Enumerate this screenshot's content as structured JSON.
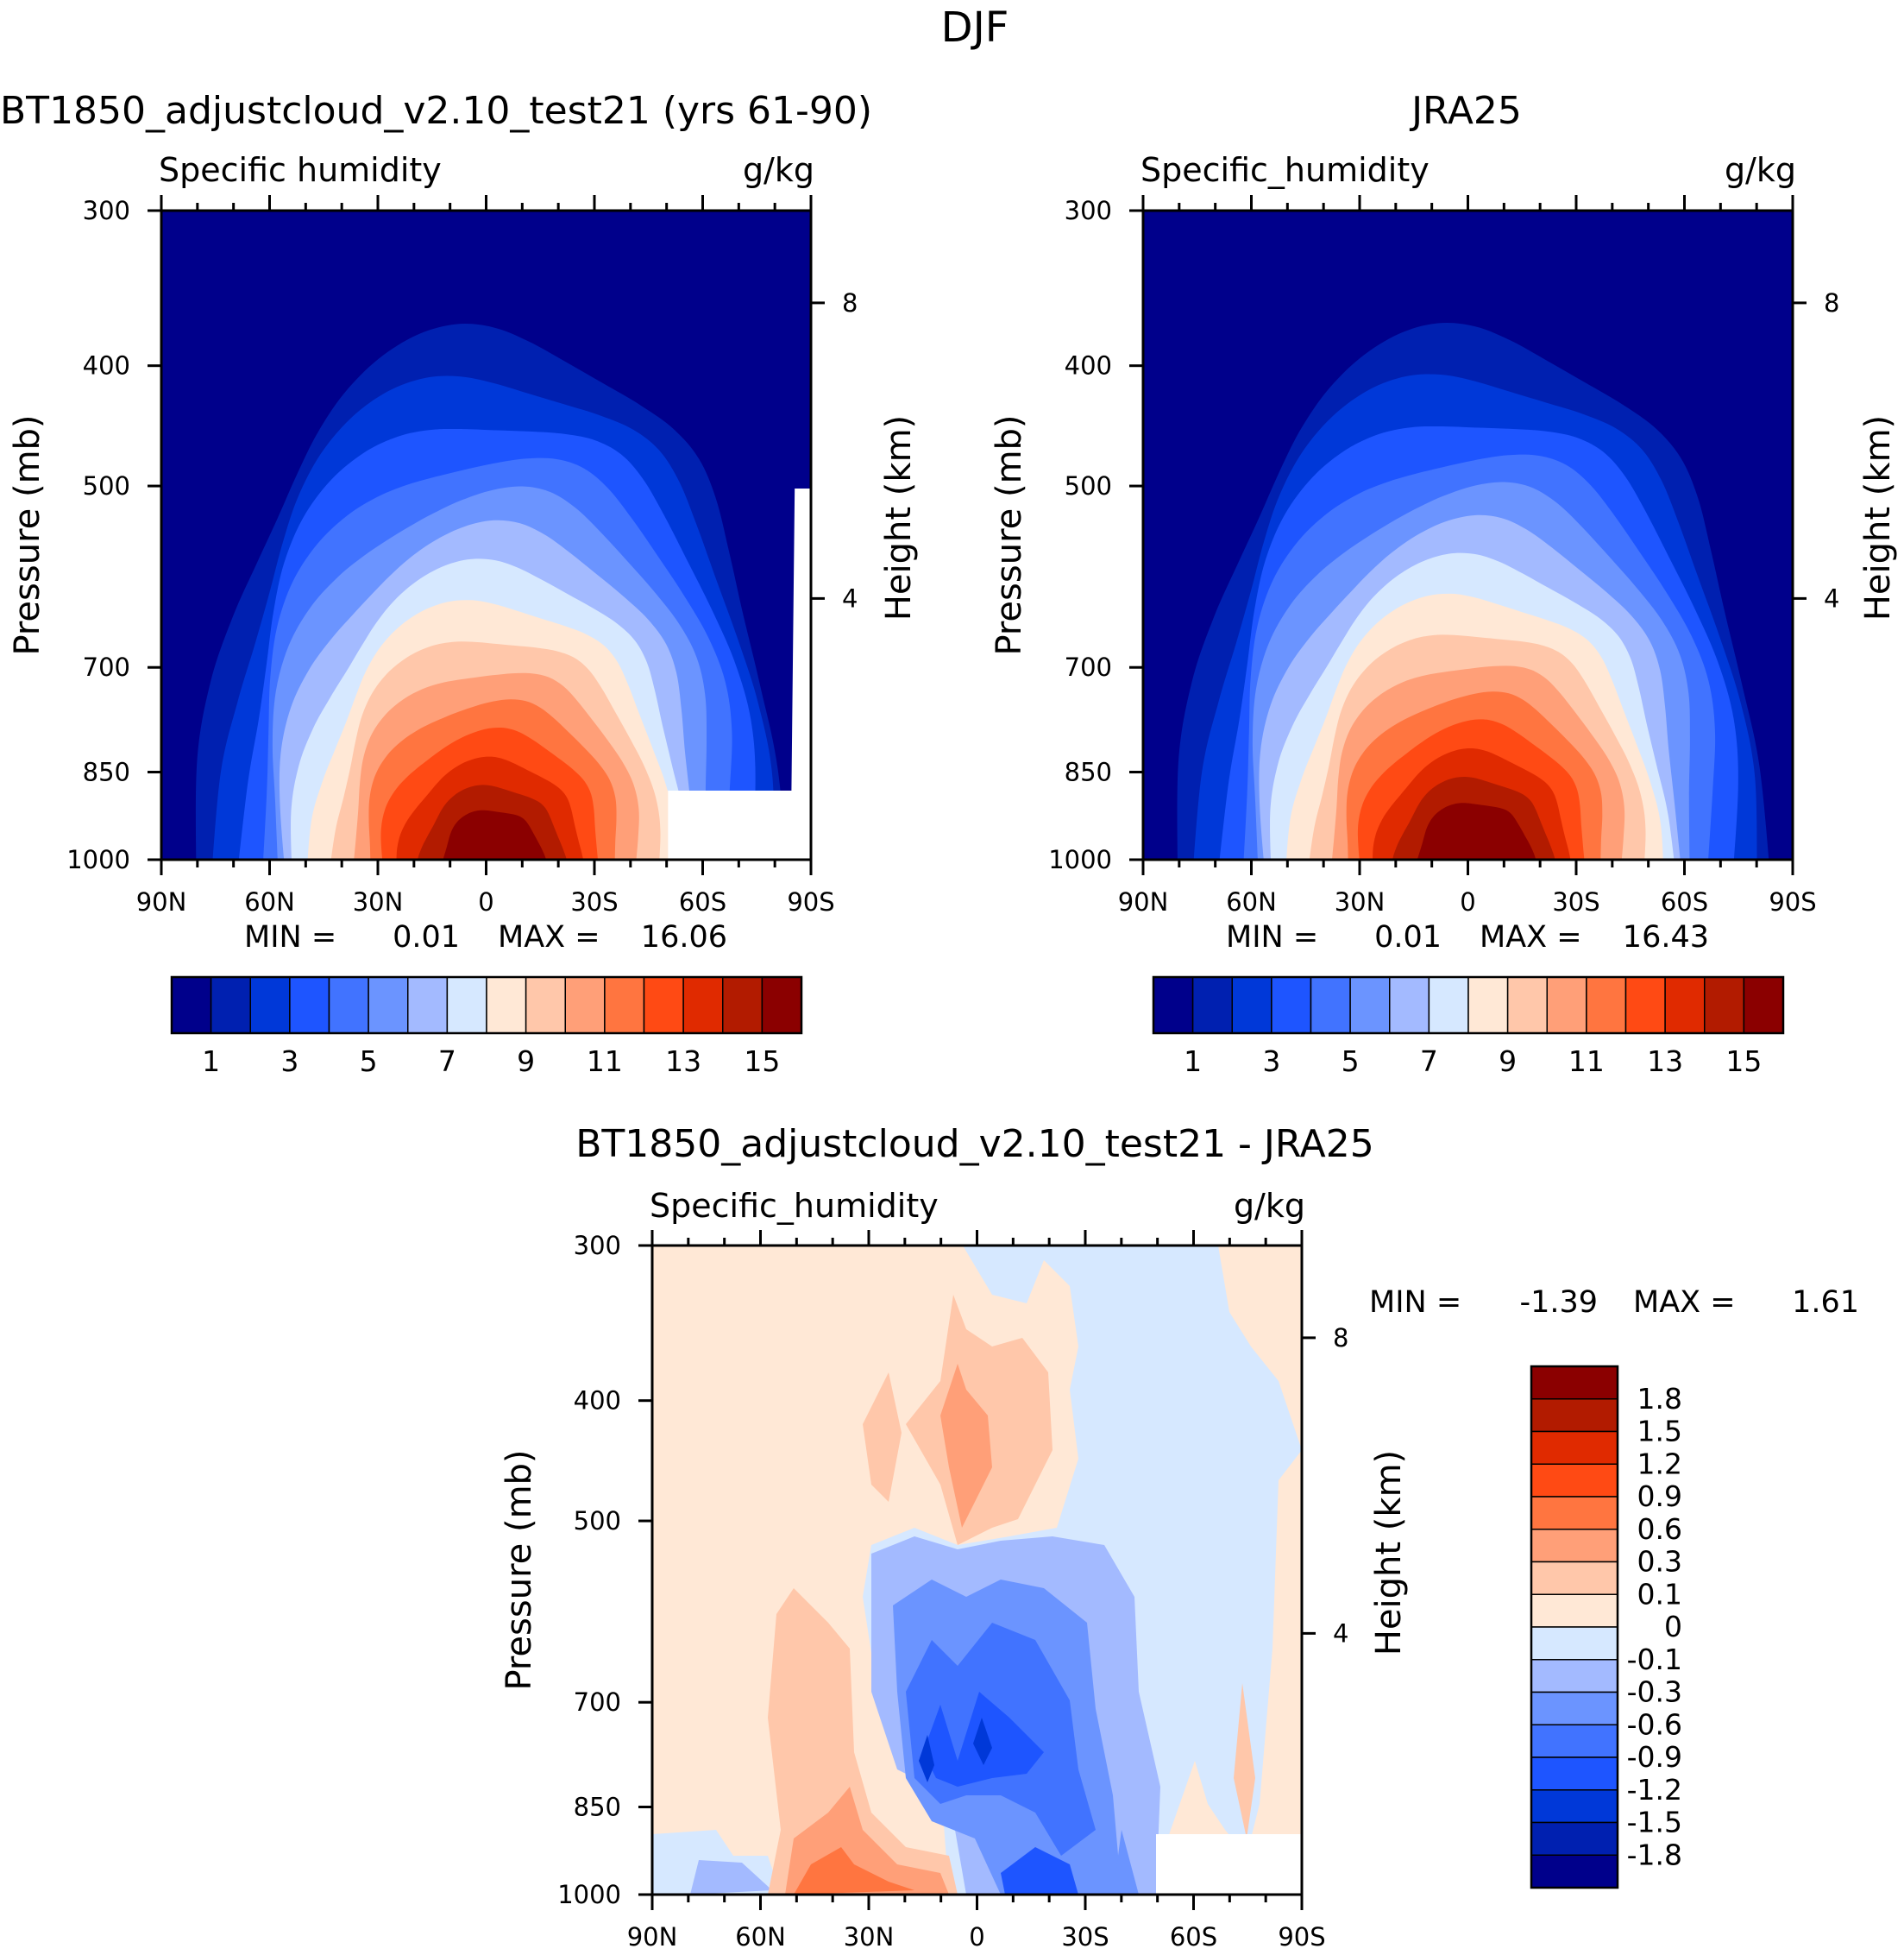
{
  "figure_title": "DJF",
  "chart_data": [
    {
      "type": "heatmap",
      "title": "BT1850_adjustcloud_v2.10_test21 (yrs 61-90)",
      "variable": "Specific humidity",
      "units": "g/kg",
      "xlabel": "",
      "ylabel": "Pressure (mb)",
      "right_axis_label": "Height (km)",
      "x_ticks": [
        "90N",
        "60N",
        "30N",
        "0",
        "30S",
        "60S",
        "90S"
      ],
      "y_ticks": [
        "300",
        "400",
        "500",
        "700",
        "850",
        "1000"
      ],
      "right_ticks": [
        "8",
        "4"
      ],
      "ylim": [
        1000,
        300
      ],
      "min_label": "MIN =",
      "min_value": "0.01",
      "max_label": "MAX =",
      "max_value": "16.06",
      "peak_value": 16.06,
      "colorbar_labels": [
        "1",
        "3",
        "5",
        "7",
        "9",
        "11",
        "13",
        "15"
      ],
      "colors": [
        "#00008b",
        "#0020b0",
        "#0038d8",
        "#1e55ff",
        "#4173ff",
        "#6b94ff",
        "#a3baff",
        "#d6e8ff",
        "#ffe8d6",
        "#ffc7aa",
        "#ff9f78",
        "#ff7540",
        "#ff4a14",
        "#e02a00",
        "#b21b00",
        "#8b0000"
      ],
      "masked_region": "surface below 1000 mb south of 60S"
    },
    {
      "type": "heatmap",
      "title": "JRA25",
      "variable": "Specific_humidity",
      "units": "g/kg",
      "xlabel": "",
      "ylabel": "Pressure (mb)",
      "right_axis_label": "Height (km)",
      "x_ticks": [
        "90N",
        "60N",
        "30N",
        "0",
        "30S",
        "60S",
        "90S"
      ],
      "y_ticks": [
        "300",
        "400",
        "500",
        "700",
        "850",
        "1000"
      ],
      "right_ticks": [
        "8",
        "4"
      ],
      "ylim": [
        1000,
        300
      ],
      "min_label": "MIN =",
      "min_value": "0.01",
      "max_label": "MAX =",
      "max_value": "16.43",
      "peak_value": 16.43,
      "colorbar_labels": [
        "1",
        "3",
        "5",
        "7",
        "9",
        "11",
        "13",
        "15"
      ],
      "colors": [
        "#00008b",
        "#0020b0",
        "#0038d8",
        "#1e55ff",
        "#4173ff",
        "#6b94ff",
        "#a3baff",
        "#d6e8ff",
        "#ffe8d6",
        "#ffc7aa",
        "#ff9f78",
        "#ff7540",
        "#ff4a14",
        "#e02a00",
        "#b21b00",
        "#8b0000"
      ]
    },
    {
      "type": "heatmap",
      "title": "BT1850_adjustcloud_v2.10_test21 - JRA25",
      "variable": "Specific_humidity",
      "units": "g/kg",
      "xlabel": "",
      "ylabel": "Pressure (mb)",
      "right_axis_label": "Height (km)",
      "x_ticks": [
        "90N",
        "60N",
        "30N",
        "0",
        "30S",
        "60S",
        "90S"
      ],
      "y_ticks": [
        "300",
        "400",
        "500",
        "700",
        "850",
        "1000"
      ],
      "right_ticks": [
        "8",
        "4"
      ],
      "ylim": [
        1000,
        300
      ],
      "min_label": "MIN =",
      "min_value": "-1.39",
      "max_label": "MAX =",
      "max_value": "1.61",
      "colorbar_labels": [
        "1.8",
        "1.5",
        "1.2",
        "0.9",
        "0.6",
        "0.3",
        "0.1",
        "0",
        "-0.1",
        "-0.3",
        "-0.6",
        "-0.9",
        "-1.2",
        "-1.5",
        "-1.8"
      ],
      "colors": [
        "#8b0000",
        "#b21b00",
        "#e02a00",
        "#ff4a14",
        "#ff7540",
        "#ff9f78",
        "#ffc7aa",
        "#ffe8d6",
        "#d6e8ff",
        "#a3baff",
        "#6b94ff",
        "#4173ff",
        "#1e55ff",
        "#0038d8",
        "#0020b0",
        "#00008b"
      ]
    }
  ]
}
